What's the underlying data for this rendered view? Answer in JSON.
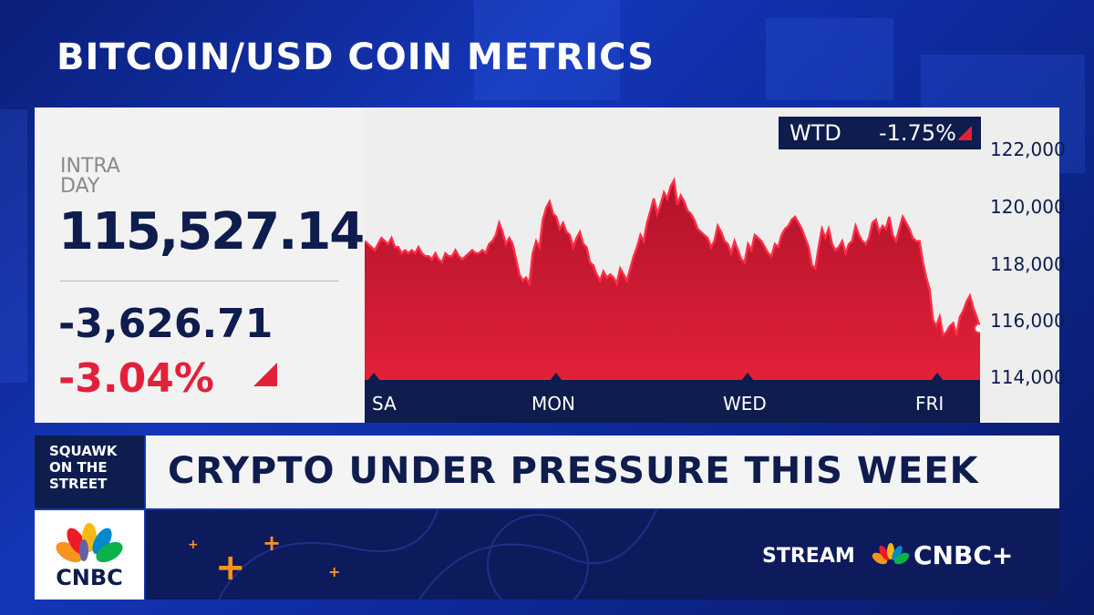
{
  "headline": "BITCOIN/USD COIN METRICS",
  "quote": {
    "label_line1": "INTRA",
    "label_line2": "DAY",
    "price": "115,527.14",
    "change": "-3,626.71",
    "percent": "-3.04%"
  },
  "wtd": {
    "label": "WTD",
    "value": "-1.75%"
  },
  "chart_data": {
    "type": "area",
    "title": "",
    "xlabel": "",
    "ylabel": "",
    "x_tick_labels": [
      "SA",
      "MON",
      "WED",
      "FRI"
    ],
    "y_tick_labels": [
      "122,000",
      "120,000",
      "118,000",
      "116,000",
      "114,000"
    ],
    "y_ticks": [
      122000,
      120000,
      118000,
      116000,
      114000
    ],
    "ylim": [
      113800,
      122800
    ],
    "grid": false,
    "colors": {
      "fill": "#e3203a",
      "fill_dark": "#8e0f1f",
      "line": "#ff2d46"
    },
    "series": [
      {
        "values": [
          118400,
          118300,
          118200,
          118100,
          118300,
          118500,
          118400,
          118300,
          118500,
          118200,
          118200,
          118000,
          118100,
          118000,
          118100,
          118000,
          118200,
          118000,
          117900,
          117900,
          117800,
          118000,
          117800,
          117700,
          118000,
          117900,
          117900,
          118100,
          117900,
          117800,
          117900,
          118000,
          118100,
          118000,
          118000,
          118100,
          118000,
          118300,
          118400,
          118600,
          119000,
          118700,
          118300,
          118500,
          118300,
          117800,
          117300,
          117100,
          117200,
          117000,
          118000,
          118400,
          118200,
          119100,
          119500,
          119700,
          119300,
          119200,
          118800,
          119000,
          118700,
          118600,
          118200,
          118500,
          118700,
          118300,
          118200,
          117700,
          117600,
          117300,
          117100,
          117400,
          117200,
          117300,
          117200,
          117000,
          117500,
          117300,
          117100,
          117500,
          117900,
          118200,
          118600,
          118400,
          119000,
          119400,
          119800,
          119300,
          119600,
          120000,
          119800,
          120200,
          120400,
          119600,
          119900,
          119700,
          119400,
          119300,
          119100,
          118800,
          118700,
          118600,
          118500,
          118200,
          118400,
          118900,
          118700,
          118400,
          118300,
          118000,
          118400,
          118100,
          117800,
          117700,
          118300,
          118100,
          118600,
          118500,
          118400,
          118200,
          118000,
          117900,
          118300,
          118200,
          118600,
          118800,
          118900,
          119100,
          119200,
          119000,
          118800,
          118500,
          118200,
          117600,
          117500,
          118200,
          118800,
          118500,
          118800,
          118300,
          118100,
          118200,
          118400,
          118000,
          118300,
          118400,
          118900,
          118600,
          118400,
          118300,
          118500,
          119000,
          119100,
          118700,
          118900,
          118800,
          119200,
          118600,
          118400,
          118800,
          119200,
          119000,
          118800,
          118500,
          118400,
          118400,
          117700,
          117200,
          116800,
          115800,
          115600,
          115900,
          115300,
          115400,
          115600,
          115700,
          115300,
          115900,
          116100,
          116400,
          116600,
          116200,
          115900,
          115527
        ]
      }
    ]
  },
  "ticker": {
    "show": "SQUAWK ON THE STREET",
    "show_line1": "SQUAWK",
    "show_line2": "ON THE",
    "show_line3": "STREET",
    "headline": "CRYPTO UNDER PRESSURE THIS WEEK"
  },
  "branding": {
    "logo_text": "CNBC",
    "stream_label": "STREAM",
    "stream_brand": "CNBC+"
  }
}
